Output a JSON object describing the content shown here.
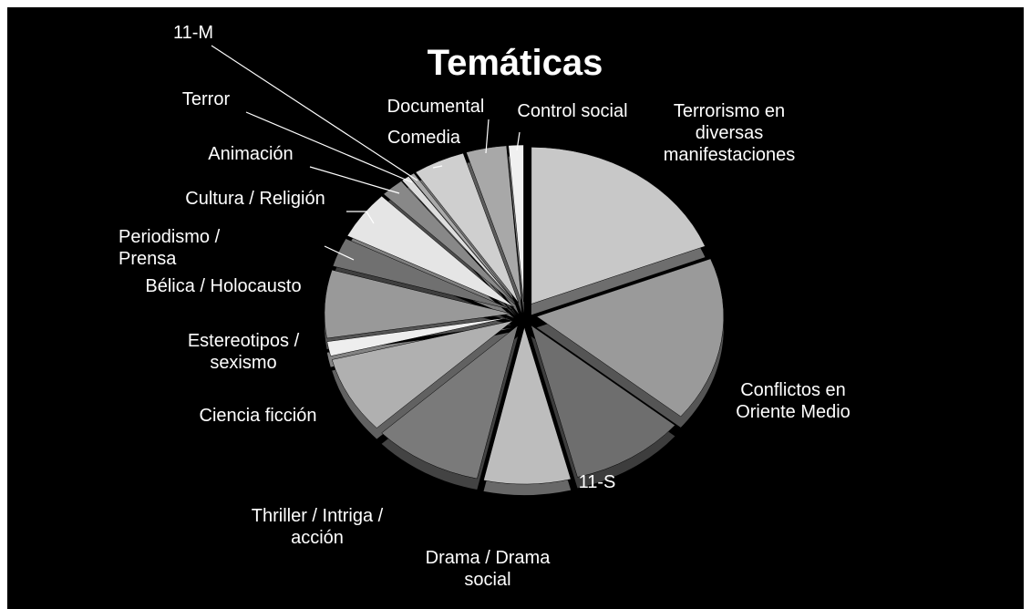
{
  "chart_data": {
    "type": "pie",
    "title": "Temáticas",
    "categories": [
      "Terrorismo en diversas manifestaciones",
      "Conflictos en Oriente Medio",
      "11-S",
      "Drama / Drama social",
      "Thriller / Intriga / acción",
      "Ciencia ficción",
      "Estereotipos / sexismo",
      "Bélica / Holocausto",
      "Periodismo / Prensa",
      "Cultura / Religión",
      "Animación",
      "Terror",
      "11-M",
      "Comedia",
      "Documental",
      "Control social"
    ],
    "values": [
      19,
      17,
      10,
      7.5,
      9.5,
      8,
      1.5,
      7,
      3,
      5,
      2,
      0.7,
      0.5,
      4.5,
      3.5,
      1.3
    ],
    "colors": [
      "#c8c8c8",
      "#9a9a9a",
      "#6e6e6e",
      "#bdbdbd",
      "#7a7a7a",
      "#b0b0b0",
      "#eeeeee",
      "#999999",
      "#707070",
      "#e5e5e5",
      "#888888",
      "#dddddd",
      "#aaaaaa",
      "#cfcfcf",
      "#a8a8a8",
      "#f0f0f0"
    ]
  }
}
